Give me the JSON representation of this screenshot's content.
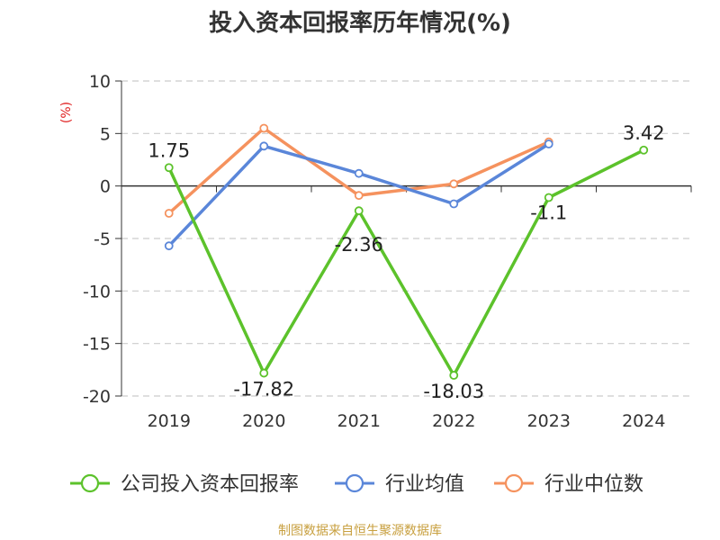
{
  "title": "投入资本回报率历年情况(%)",
  "source": "制图数据来自恒生聚源数据库",
  "chart_data": {
    "type": "line",
    "title": "投入资本回报率历年情况(%)",
    "ylabel": "(%)",
    "xlabel": "",
    "categories": [
      "2019",
      "2020",
      "2021",
      "2022",
      "2023",
      "2024"
    ],
    "ylim": [
      -20,
      10
    ],
    "yticks": [
      10,
      5,
      0,
      -5,
      -10,
      -15,
      -20
    ],
    "grid": true,
    "legend_position": "bottom",
    "series": [
      {
        "name": "公司投入资本回报率",
        "color": "#5cc22b",
        "values": [
          1.75,
          -17.82,
          -2.36,
          -18.03,
          -1.1,
          3.42
        ],
        "labels": [
          "1.75",
          "-17.82",
          "-2.36",
          "-18.03",
          "-1.1",
          "3.42"
        ]
      },
      {
        "name": "行业均值",
        "color": "#5a86d9",
        "values": [
          -5.7,
          3.8,
          1.2,
          -1.7,
          4.0,
          null
        ]
      },
      {
        "name": "行业中位数",
        "color": "#f5925e",
        "values": [
          -2.6,
          5.5,
          -0.9,
          0.2,
          4.2,
          null
        ]
      }
    ]
  }
}
